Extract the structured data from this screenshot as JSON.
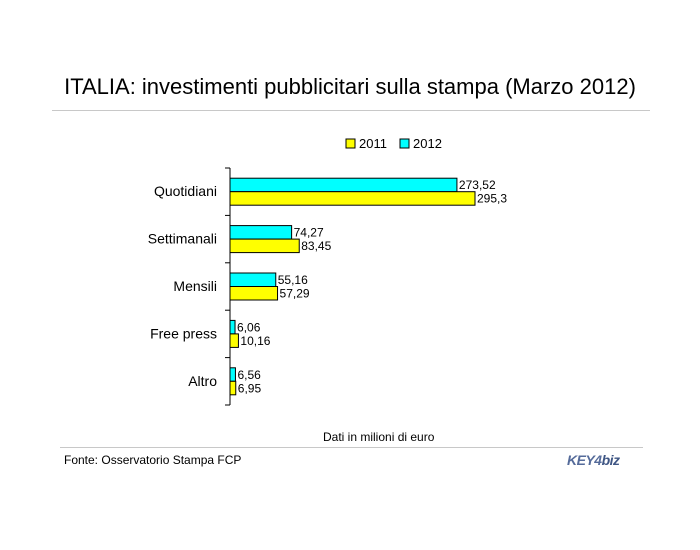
{
  "title": "ITALIA: investimenti pubblicitari sulla stampa (Marzo 2012)",
  "axis_note": "Dati in milioni di euro",
  "source": "Fonte: Osservatorio Stampa FCP",
  "logo": {
    "left": "KEY4",
    "right": "biz"
  },
  "colors": {
    "2011": "#ffff00",
    "2012": "#00ffff",
    "outline": "#000000"
  },
  "chart_data": {
    "type": "bar",
    "orientation": "horizontal",
    "categories": [
      "Quotidiani",
      "Settimanali",
      "Mensili",
      "Free press",
      "Altro"
    ],
    "series": [
      {
        "name": "2012",
        "values": [
          273.52,
          74.27,
          55.16,
          6.06,
          6.56
        ],
        "labels": [
          "273,52",
          "74,27",
          "55,16",
          "6,06",
          "6,56"
        ]
      },
      {
        "name": "2011",
        "values": [
          295.3,
          83.45,
          57.29,
          10.16,
          6.95
        ],
        "labels": [
          "295,3",
          "83,45",
          "57,29",
          "10,16",
          "6,95"
        ]
      }
    ],
    "legend": {
      "entries": [
        "2011",
        "2012"
      ],
      "placement": "top"
    },
    "xlim": [
      0,
      400
    ],
    "grid": false
  }
}
